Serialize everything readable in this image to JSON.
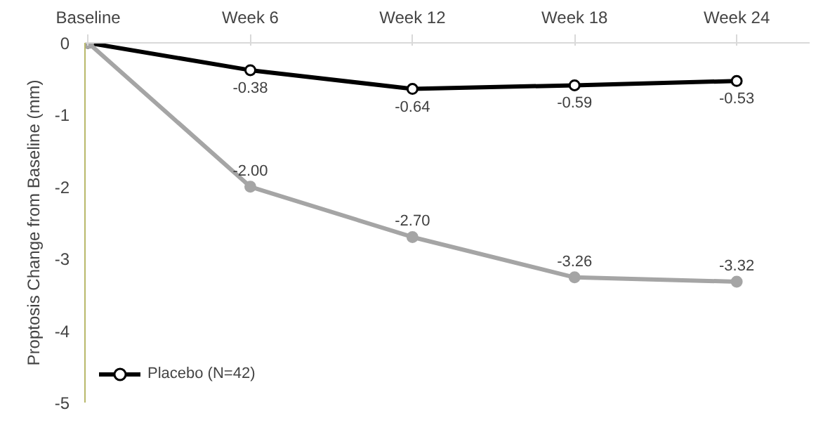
{
  "chart_data": {
    "type": "line",
    "ylabel": "Proptosis Change from Baseline (mm)",
    "categories": [
      "Baseline",
      "Week 6",
      "Week 12",
      "Week 18",
      "Week 24"
    ],
    "series": [
      {
        "name": "Placebo (N=42)",
        "color": "#000000",
        "values": [
          0,
          -0.38,
          -0.64,
          -0.59,
          -0.53
        ],
        "value_labels": [
          null,
          "-0.38",
          "-0.64",
          "-0.59",
          "-0.53"
        ]
      },
      {
        "color": "#a5a5a5",
        "values": [
          0,
          -2.0,
          -2.7,
          -3.26,
          -3.32
        ],
        "value_labels": [
          null,
          "-2.00",
          "-2.70",
          "-3.26",
          "-3.32"
        ]
      }
    ],
    "ylim": [
      -5,
      0
    ],
    "yticks": [
      0,
      -1,
      -2,
      -3,
      -4,
      -5
    ],
    "grid": false,
    "legend": "bottom left",
    "marker": "circle",
    "line_style": "solid"
  }
}
